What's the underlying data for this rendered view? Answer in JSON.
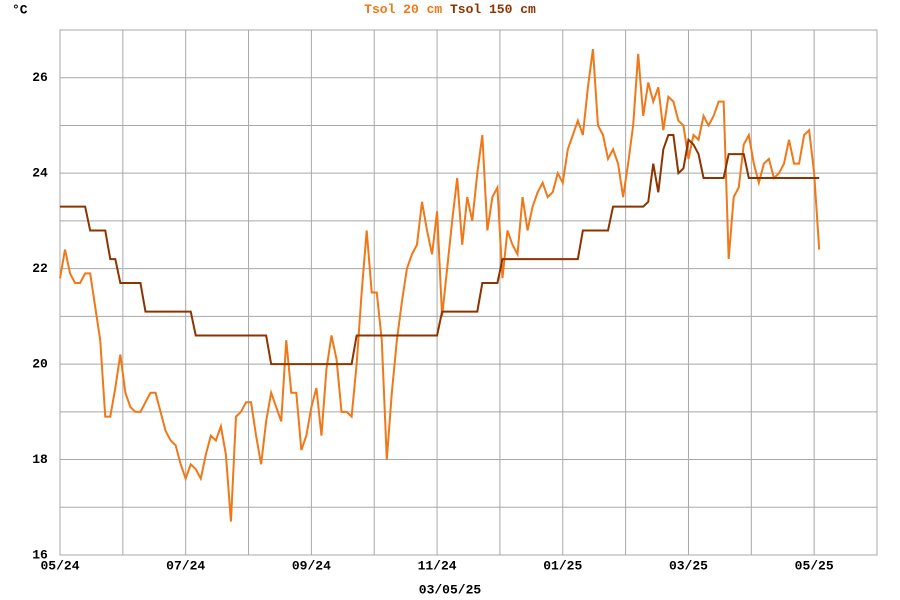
{
  "chart_data": {
    "type": "line",
    "y_label": "°C",
    "x_label": "03/05/25",
    "xlim": [
      0,
      13
    ],
    "xticks": [
      {
        "value": 0,
        "label": "05/24"
      },
      {
        "value": 2,
        "label": "07/24"
      },
      {
        "value": 4,
        "label": "09/24"
      },
      {
        "value": 6,
        "label": "11/24"
      },
      {
        "value": 8,
        "label": "01/25"
      },
      {
        "value": 10,
        "label": "03/25"
      },
      {
        "value": 12,
        "label": "05/25"
      }
    ],
    "minor_xticks": [
      1,
      3,
      5,
      7,
      9,
      11
    ],
    "ylim": [
      16,
      27
    ],
    "yticks": [
      16,
      18,
      20,
      22,
      24,
      26
    ],
    "minor_yticks": [
      17,
      19,
      21,
      23,
      25
    ],
    "grid": true,
    "x": [
      0,
      0.08,
      0.16,
      0.24,
      0.32,
      0.4,
      0.48,
      0.56,
      0.64,
      0.72,
      0.8,
      0.88,
      0.96,
      1.04,
      1.12,
      1.2,
      1.28,
      1.36,
      1.44,
      1.52,
      1.6,
      1.68,
      1.76,
      1.84,
      1.92,
      2,
      2.08,
      2.16,
      2.24,
      2.32,
      2.4,
      2.48,
      2.56,
      2.64,
      2.72,
      2.8,
      2.88,
      2.96,
      3.04,
      3.12,
      3.2,
      3.28,
      3.36,
      3.44,
      3.52,
      3.6,
      3.68,
      3.76,
      3.84,
      3.92,
      4,
      4.08,
      4.16,
      4.24,
      4.32,
      4.4,
      4.48,
      4.56,
      4.64,
      4.72,
      4.8,
      4.88,
      4.96,
      5.04,
      5.12,
      5.2,
      5.28,
      5.36,
      5.44,
      5.52,
      5.6,
      5.68,
      5.76,
      5.84,
      5.92,
      6,
      6.08,
      6.16,
      6.24,
      6.32,
      6.4,
      6.48,
      6.56,
      6.64,
      6.72,
      6.8,
      6.88,
      6.96,
      7.04,
      7.12,
      7.2,
      7.28,
      7.36,
      7.44,
      7.52,
      7.6,
      7.68,
      7.76,
      7.84,
      7.92,
      8,
      8.08,
      8.16,
      8.24,
      8.32,
      8.4,
      8.48,
      8.56,
      8.64,
      8.72,
      8.8,
      8.88,
      8.96,
      9.04,
      9.12,
      9.2,
      9.28,
      9.36,
      9.44,
      9.52,
      9.6,
      9.68,
      9.76,
      9.84,
      9.92,
      10,
      10.08,
      10.16,
      10.24,
      10.32,
      10.4,
      10.48,
      10.56,
      10.64,
      10.72,
      10.8,
      10.88,
      10.96,
      11.04,
      11.12,
      11.2,
      11.28,
      11.36,
      11.44,
      11.52,
      11.6,
      11.68,
      11.76,
      11.84,
      11.92,
      12,
      12.08
    ],
    "series": [
      {
        "name": "Tsol 20 cm",
        "color": "#f07818",
        "values": [
          21.8,
          22.4,
          21.9,
          21.7,
          21.7,
          21.9,
          21.9,
          21.2,
          20.5,
          18.9,
          18.9,
          19.5,
          20.2,
          19.4,
          19.1,
          19.0,
          19.0,
          19.2,
          19.4,
          19.4,
          19.0,
          18.6,
          18.4,
          18.3,
          17.9,
          17.6,
          17.9,
          17.8,
          17.6,
          18.1,
          18.5,
          18.4,
          18.7,
          18.1,
          16.7,
          18.9,
          19.0,
          19.2,
          19.2,
          18.5,
          17.9,
          18.8,
          19.4,
          19.1,
          18.8,
          20.5,
          19.4,
          19.4,
          18.2,
          18.5,
          19.1,
          19.5,
          18.5,
          19.9,
          20.6,
          20.1,
          19.0,
          19.0,
          18.9,
          20.0,
          21.5,
          22.8,
          21.5,
          21.5,
          20.5,
          18.0,
          19.4,
          20.5,
          21.3,
          22.0,
          22.3,
          22.5,
          23.4,
          22.8,
          22.3,
          23.2,
          21.0,
          22.0,
          23.0,
          23.9,
          22.5,
          23.5,
          23.0,
          24.0,
          24.8,
          22.8,
          23.5,
          23.7,
          21.8,
          22.8,
          22.5,
          22.3,
          23.5,
          22.8,
          23.3,
          23.6,
          23.8,
          23.5,
          23.6,
          24.0,
          23.8,
          24.5,
          24.8,
          25.1,
          24.8,
          25.8,
          26.6,
          25.0,
          24.8,
          24.3,
          24.5,
          24.2,
          23.5,
          24.2,
          25.0,
          26.5,
          25.2,
          25.9,
          25.5,
          25.8,
          24.9,
          25.6,
          25.5,
          25.1,
          25.0,
          24.3,
          24.8,
          24.7,
          25.2,
          25.0,
          25.2,
          25.5,
          25.5,
          22.2,
          23.5,
          23.7,
          24.6,
          24.8,
          24.2,
          23.8,
          24.2,
          24.3,
          23.9,
          24.0,
          24.2,
          24.7,
          24.2,
          24.2,
          24.8,
          24.9,
          24.0,
          22.4
        ]
      },
      {
        "name": "Tsol 150 cm",
        "color": "#8c3400",
        "values": [
          23.3,
          23.3,
          23.3,
          23.3,
          23.3,
          23.3,
          22.8,
          22.8,
          22.8,
          22.8,
          22.2,
          22.2,
          21.7,
          21.7,
          21.7,
          21.7,
          21.7,
          21.1,
          21.1,
          21.1,
          21.1,
          21.1,
          21.1,
          21.1,
          21.1,
          21.1,
          21.1,
          20.6,
          20.6,
          20.6,
          20.6,
          20.6,
          20.6,
          20.6,
          20.6,
          20.6,
          20.6,
          20.6,
          20.6,
          20.6,
          20.6,
          20.6,
          20.0,
          20.0,
          20.0,
          20.0,
          20.0,
          20.0,
          20.0,
          20.0,
          20.0,
          20.0,
          20.0,
          20.0,
          20.0,
          20.0,
          20.0,
          20.0,
          20.0,
          20.6,
          20.6,
          20.6,
          20.6,
          20.6,
          20.6,
          20.6,
          20.6,
          20.6,
          20.6,
          20.6,
          20.6,
          20.6,
          20.6,
          20.6,
          20.6,
          20.6,
          21.1,
          21.1,
          21.1,
          21.1,
          21.1,
          21.1,
          21.1,
          21.1,
          21.7,
          21.7,
          21.7,
          21.7,
          22.2,
          22.2,
          22.2,
          22.2,
          22.2,
          22.2,
          22.2,
          22.2,
          22.2,
          22.2,
          22.2,
          22.2,
          22.2,
          22.2,
          22.2,
          22.2,
          22.8,
          22.8,
          22.8,
          22.8,
          22.8,
          22.8,
          23.3,
          23.3,
          23.3,
          23.3,
          23.3,
          23.3,
          23.3,
          23.4,
          24.2,
          23.6,
          24.5,
          24.8,
          24.8,
          24.0,
          24.1,
          24.7,
          24.6,
          24.4,
          23.9,
          23.9,
          23.9,
          23.9,
          23.9,
          24.4,
          24.4,
          24.4,
          24.4,
          23.9,
          23.9,
          23.9,
          23.9,
          23.9,
          23.9,
          23.9,
          23.9,
          23.9,
          23.9,
          23.9,
          23.9,
          23.9,
          23.9,
          23.9
        ]
      }
    ]
  }
}
